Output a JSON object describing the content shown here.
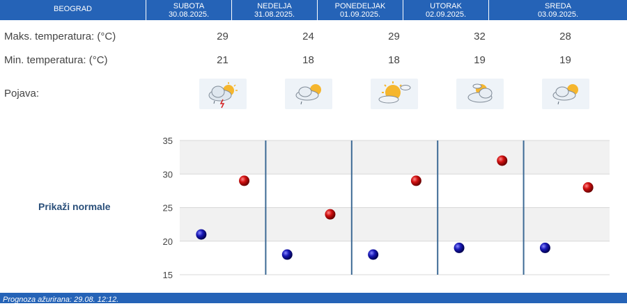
{
  "header": {
    "city": "BEOGRAD",
    "days": [
      {
        "name": "SUBOTA",
        "date": "30.08.2025."
      },
      {
        "name": "NEDELJA",
        "date": "31.08.2025."
      },
      {
        "name": "PONEDELJAK",
        "date": "01.09.2025."
      },
      {
        "name": "UTORAK",
        "date": "02.09.2025."
      },
      {
        "name": "SREDA",
        "date": "03.09.2025."
      }
    ]
  },
  "rows": {
    "max_label": "Maks. temperatura: (°C)",
    "min_label": "Min. temperatura: (°C)",
    "phen_label": "Pojava:",
    "max_values": [
      "29",
      "24",
      "29",
      "32",
      "28"
    ],
    "min_values": [
      "21",
      "18",
      "18",
      "19",
      "19"
    ],
    "icons": [
      "cloud-sun-thunder-icon",
      "cloud-sun-drizzle-icon",
      "sun-cloud-icon",
      "cloud-sun-icon",
      "cloud-sun-drizzle-icon"
    ]
  },
  "chart": {
    "toggle_label": "Prikaži normale"
  },
  "chart_data": {
    "type": "scatter",
    "categories": [
      "SUBOTA",
      "NEDELJA",
      "PONEDELJAK",
      "UTORAK",
      "SREDA"
    ],
    "series": [
      {
        "values": [
          29,
          24,
          29,
          32,
          28
        ],
        "color": "#c00000"
      },
      {
        "values": [
          21,
          18,
          18,
          19,
          19
        ],
        "color": "#1a1aa0"
      }
    ],
    "ylim": [
      15,
      35
    ],
    "yticks": [
      15,
      20,
      25,
      30,
      35
    ],
    "grid": true
  },
  "footer": {
    "text": "Prognoza ažurirana:  29.08. 12:12."
  },
  "colors": {
    "header_bg": "#2563b7",
    "max_dot": "#c00000",
    "min_dot": "#1a1aa0"
  }
}
